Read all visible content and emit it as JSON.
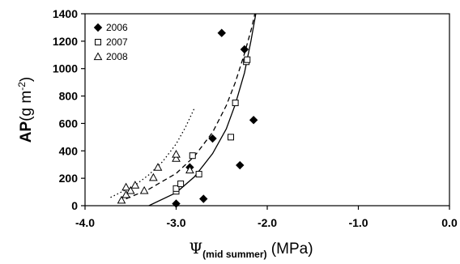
{
  "chart_data": {
    "type": "scatter",
    "xlabel": {
      "symbol": "Ψ",
      "subscript": "(mid summer)",
      "unit": " (MPa)"
    },
    "ylabel": {
      "bold": "AP",
      "unit_prefix": "(g m",
      "unit_exp": "-2",
      "unit_suffix": ")"
    },
    "xlim": [
      -4.0,
      0.0
    ],
    "ylim": [
      0,
      1400
    ],
    "xticks": [
      "-4.0",
      "-3.0",
      "-2.0",
      "-1.0",
      "0.0"
    ],
    "yticks": [
      "0",
      "200",
      "400",
      "600",
      "800",
      "1000",
      "1200",
      "1400"
    ],
    "xtick_values": [
      -4.0,
      -3.0,
      -2.0,
      -1.0,
      0.0
    ],
    "ytick_values": [
      0,
      200,
      400,
      600,
      800,
      1000,
      1200,
      1400
    ],
    "legend_position": "top-left",
    "series": [
      {
        "name": "2006",
        "marker": "diamond-filled",
        "color": "#000000",
        "points": [
          [
            -3.0,
            15
          ],
          [
            -2.85,
            280
          ],
          [
            -2.7,
            50
          ],
          [
            -2.6,
            490
          ],
          [
            -2.5,
            1260
          ],
          [
            -2.3,
            295
          ],
          [
            -2.25,
            1140
          ],
          [
            -2.15,
            625
          ]
        ],
        "fit": {
          "style": "solid",
          "x": [
            -3.3,
            -3.0,
            -2.8,
            -2.6,
            -2.45,
            -2.35,
            -2.25,
            -2.18,
            -2.12
          ],
          "y": [
            0,
            95,
            210,
            380,
            560,
            740,
            970,
            1200,
            1420
          ]
        }
      },
      {
        "name": "2007",
        "marker": "square-open",
        "color": "#000000",
        "points": [
          [
            -3.0,
            105
          ],
          [
            -3.0,
            125
          ],
          [
            -2.95,
            160
          ],
          [
            -2.82,
            365
          ],
          [
            -2.75,
            230
          ],
          [
            -2.4,
            500
          ],
          [
            -2.35,
            750
          ],
          [
            -2.23,
            1050
          ],
          [
            -2.22,
            1065
          ]
        ],
        "fit": {
          "style": "dashed",
          "x": [
            -3.55,
            -3.3,
            -3.0,
            -2.8,
            -2.6,
            -2.45,
            -2.35,
            -2.25,
            -2.17,
            -2.13
          ],
          "y": [
            50,
            120,
            235,
            360,
            535,
            730,
            900,
            1110,
            1300,
            1420
          ]
        }
      },
      {
        "name": "2008",
        "marker": "triangle-open",
        "color": "#000000",
        "points": [
          [
            -3.6,
            40
          ],
          [
            -3.55,
            80
          ],
          [
            -3.55,
            135
          ],
          [
            -3.5,
            110
          ],
          [
            -3.45,
            150
          ],
          [
            -3.35,
            110
          ],
          [
            -3.25,
            205
          ],
          [
            -3.2,
            280
          ],
          [
            -3.0,
            345
          ],
          [
            -3.0,
            375
          ],
          [
            -2.85,
            260
          ]
        ],
        "fit": {
          "style": "dotted",
          "x": [
            -3.72,
            -3.6,
            -3.45,
            -3.3,
            -3.15,
            -3.0,
            -2.9,
            -2.8
          ],
          "y": [
            60,
            100,
            150,
            225,
            320,
            450,
            570,
            710
          ]
        }
      }
    ]
  }
}
